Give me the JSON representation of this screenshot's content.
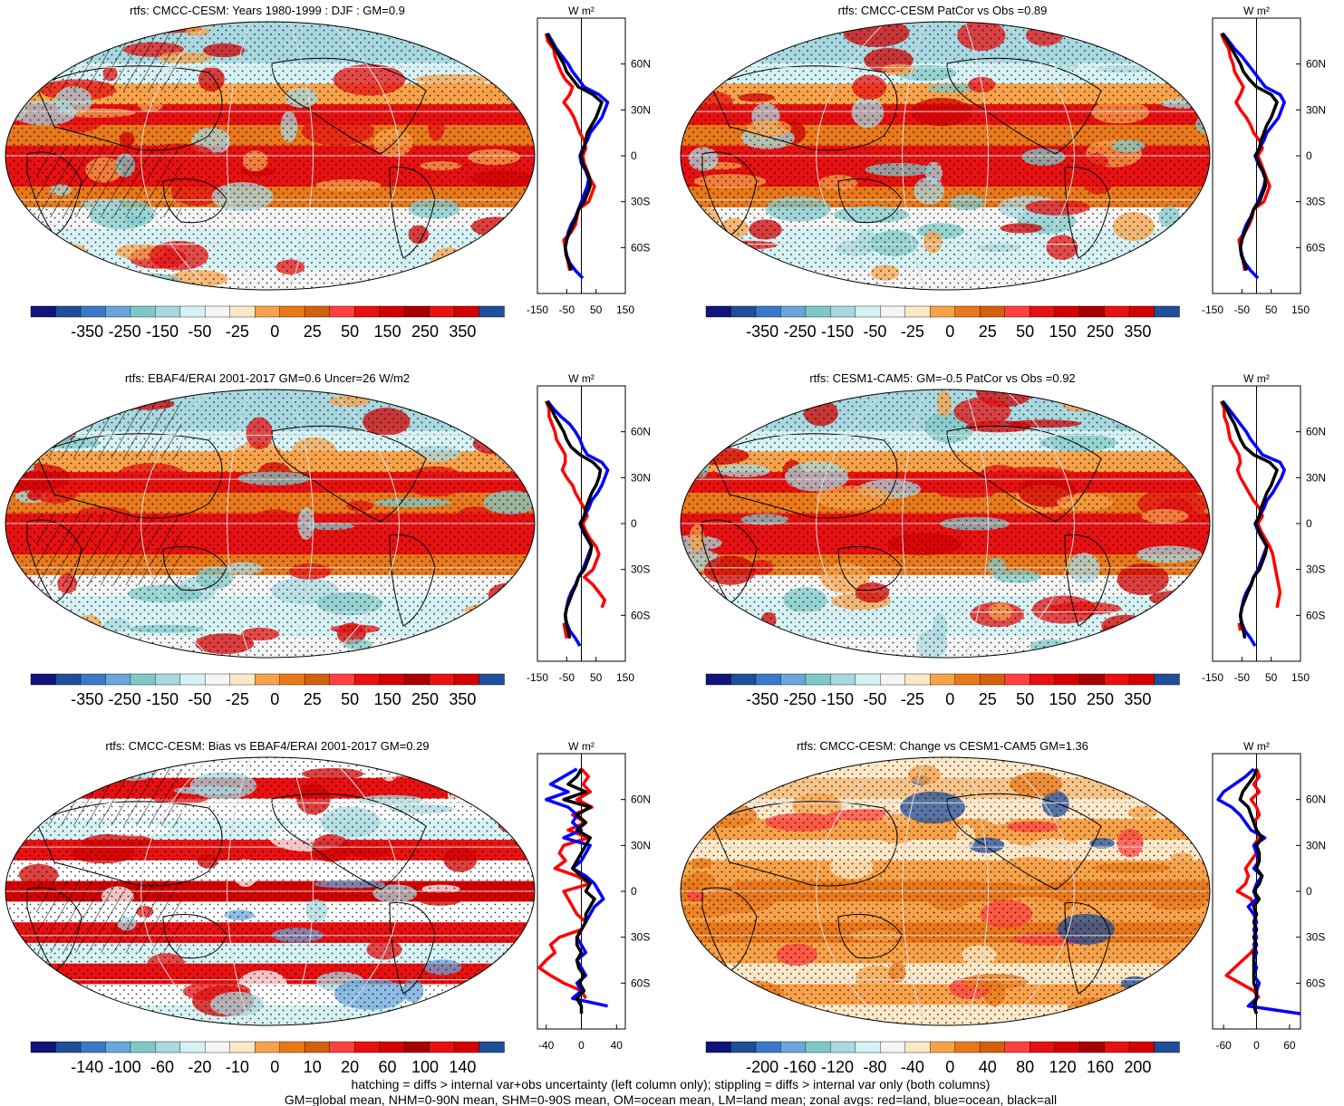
{
  "footer": {
    "line1": "hatching = diffs > internal var+obs uncertainty (left column only); stippling = diffs > internal var only (both columns)",
    "line2": "GM=global mean, NHM=0-90N mean, SHM=0-90S mean, OM=ocean mean, LM=land mean; zonal avgs: red=land, blue=ocean, black=all"
  },
  "colors": {
    "land": "#ff0000",
    "ocean": "#0000ff",
    "all": "#000000",
    "palette": [
      "#11147a",
      "#1f4e9a",
      "#3a78c8",
      "#6aa6dc",
      "#7fc8c8",
      "#a8d8e0",
      "#d6f2f4",
      "#f5f5f5",
      "#fde8c8",
      "#f7a24a",
      "#e8781a",
      "#d4600e",
      "#ff4040",
      "#e81010",
      "#d40000",
      "#a80000",
      "#e81010",
      "#d40000",
      "#1f4e9a"
    ]
  },
  "icons": {
    "map": "robinson-map-icon"
  },
  "chart_data": [
    {
      "type": "heatmap",
      "title": "rtfs: CMCC-CESM: Years 1980-1999 : DJF : GM=0.9",
      "colorbar_labels": [
        "-350",
        "-250",
        "-150",
        "-50",
        "-25",
        "0",
        "25",
        "50",
        "150",
        "250",
        "350"
      ],
      "zonal": {
        "unit": "W m²",
        "x_ticks": [
          "-150",
          "-50",
          "50",
          "150"
        ],
        "xlim": [
          -150,
          150
        ],
        "y_ticks": [
          "60N",
          "30N",
          "0",
          "30S",
          "60S"
        ],
        "lat": [
          80,
          75,
          70,
          65,
          60,
          55,
          50,
          45,
          40,
          35,
          30,
          25,
          20,
          15,
          10,
          5,
          0,
          -5,
          -10,
          -15,
          -20,
          -25,
          -30,
          -35,
          -40,
          -45,
          -50,
          -55,
          -60,
          -65,
          -70,
          -75,
          -80
        ],
        "land": [
          -120,
          -115,
          -95,
          -90,
          -80,
          -70,
          -55,
          -30,
          -40,
          -60,
          -40,
          -25,
          -15,
          -5,
          10,
          15,
          5,
          10,
          20,
          30,
          45,
          35,
          25,
          -10,
          -15,
          -20,
          -35,
          -60,
          -55,
          -50,
          -45,
          -40,
          null
        ],
        "ocean": [
          -115,
          -100,
          -85,
          -65,
          -45,
          -30,
          -10,
          10,
          60,
          90,
          80,
          70,
          50,
          30,
          20,
          5,
          -5,
          0,
          15,
          25,
          20,
          10,
          0,
          -10,
          -20,
          -35,
          -45,
          -50,
          -55,
          -50,
          -40,
          -20,
          5
        ],
        "all": [
          -118,
          -105,
          -90,
          -75,
          -60,
          -50,
          -30,
          -10,
          40,
          70,
          60,
          50,
          35,
          20,
          15,
          8,
          -2,
          5,
          18,
          28,
          30,
          20,
          10,
          -10,
          -18,
          -28,
          -40,
          -50,
          -55,
          -52,
          -42,
          -35,
          null
        ]
      }
    },
    {
      "type": "heatmap",
      "title": "rtfs: CMCC-CESM PatCor vs Obs =0.89",
      "colorbar_labels": [
        "-350",
        "-250",
        "-150",
        "-50",
        "-25",
        "0",
        "25",
        "50",
        "150",
        "250",
        "350"
      ],
      "zonal": {
        "unit": "W m²",
        "x_ticks": [
          "-150",
          "-50",
          "50",
          "150"
        ],
        "xlim": [
          -150,
          150
        ],
        "y_ticks": [
          "60N",
          "30N",
          "0",
          "30S",
          "60S"
        ],
        "lat": [
          80,
          75,
          70,
          65,
          60,
          55,
          50,
          45,
          40,
          35,
          30,
          25,
          20,
          15,
          10,
          5,
          0,
          -5,
          -10,
          -15,
          -20,
          -25,
          -30,
          -35,
          -40,
          -45,
          -50,
          -55,
          -60,
          -65,
          -70,
          -75,
          -80
        ],
        "land": [
          -120,
          -110,
          -95,
          -90,
          -80,
          -75,
          -60,
          -45,
          -55,
          -70,
          -55,
          -35,
          -20,
          -10,
          10,
          20,
          5,
          15,
          25,
          35,
          45,
          35,
          25,
          -10,
          -15,
          -25,
          -40,
          -60,
          -55,
          -50,
          -45,
          -40,
          null
        ],
        "ocean": [
          -115,
          -95,
          -75,
          -50,
          -30,
          -10,
          10,
          30,
          80,
          95,
          85,
          75,
          55,
          35,
          25,
          10,
          -5,
          5,
          20,
          30,
          25,
          15,
          5,
          -10,
          -20,
          -35,
          -45,
          -50,
          -55,
          -50,
          -40,
          -20,
          5
        ],
        "all": [
          -118,
          -100,
          -85,
          -70,
          -55,
          -45,
          -25,
          0,
          50,
          70,
          60,
          50,
          35,
          25,
          15,
          10,
          -2,
          8,
          22,
          30,
          30,
          20,
          10,
          -10,
          -18,
          -30,
          -40,
          -50,
          -55,
          -52,
          -42,
          -35,
          null
        ]
      }
    },
    {
      "type": "heatmap",
      "title": "rtfs: EBAF4/ERAI 2001-2017 GM=0.6 Uncer=26 W/m2",
      "colorbar_labels": [
        "-350",
        "-250",
        "-150",
        "-50",
        "-25",
        "0",
        "25",
        "50",
        "150",
        "250",
        "350"
      ],
      "zonal": {
        "unit": "W m²",
        "x_ticks": [
          "-150",
          "-50",
          "50",
          "150"
        ],
        "xlim": [
          -150,
          150
        ],
        "y_ticks": [
          "60N",
          "30N",
          "0",
          "30S",
          "60S"
        ],
        "lat": [
          80,
          75,
          70,
          65,
          60,
          55,
          50,
          45,
          40,
          35,
          30,
          25,
          20,
          15,
          10,
          5,
          0,
          -5,
          -10,
          -15,
          -20,
          -25,
          -30,
          -35,
          -40,
          -45,
          -50,
          -55,
          -60,
          -65,
          -70,
          -75,
          -80
        ],
        "land": [
          -120,
          -110,
          -110,
          -100,
          -90,
          -85,
          -70,
          -55,
          -55,
          -65,
          -50,
          -30,
          -20,
          -5,
          10,
          20,
          5,
          15,
          30,
          50,
          60,
          50,
          40,
          10,
          40,
          60,
          80,
          70,
          null,
          -60,
          -55,
          -50,
          null
        ],
        "ocean": [
          -115,
          -95,
          -70,
          -40,
          -20,
          -5,
          5,
          20,
          70,
          90,
          80,
          70,
          55,
          35,
          25,
          10,
          -5,
          5,
          20,
          35,
          25,
          15,
          5,
          -10,
          -20,
          -35,
          -45,
          -50,
          -55,
          -50,
          -40,
          -20,
          -5
        ],
        "all": [
          -118,
          -102,
          -90,
          -75,
          -60,
          -50,
          -35,
          -5,
          40,
          65,
          60,
          50,
          35,
          25,
          15,
          10,
          -2,
          8,
          22,
          35,
          30,
          20,
          10,
          -10,
          -18,
          -30,
          -40,
          -50,
          -55,
          -52,
          -45,
          -40,
          null
        ]
      }
    },
    {
      "type": "heatmap",
      "title": "rtfs: CESM1-CAM5: GM=-0.5 PatCor vs Obs =0.92",
      "colorbar_labels": [
        "-350",
        "-250",
        "-150",
        "-50",
        "-25",
        "0",
        "25",
        "50",
        "150",
        "250",
        "350"
      ],
      "zonal": {
        "unit": "W m²",
        "x_ticks": [
          "-150",
          "-50",
          "50",
          "150"
        ],
        "xlim": [
          -150,
          150
        ],
        "y_ticks": [
          "60N",
          "30N",
          "0",
          "30S",
          "60S"
        ],
        "lat": [
          80,
          75,
          70,
          65,
          60,
          55,
          50,
          45,
          40,
          35,
          30,
          25,
          20,
          15,
          10,
          5,
          0,
          -5,
          -10,
          -15,
          -20,
          -25,
          -30,
          -35,
          -40,
          -45,
          -50,
          -55,
          -60,
          -65,
          -70,
          -75,
          -80
        ],
        "land": [
          -120,
          -110,
          -110,
          -100,
          -95,
          -90,
          -75,
          -60,
          -55,
          -65,
          -55,
          -40,
          -25,
          -10,
          10,
          20,
          5,
          15,
          30,
          45,
          55,
          60,
          65,
          70,
          75,
          80,
          75,
          70,
          null,
          -60,
          -55,
          null,
          null
        ],
        "ocean": [
          -115,
          -95,
          -75,
          -55,
          -35,
          -20,
          0,
          20,
          80,
          95,
          85,
          70,
          55,
          35,
          25,
          10,
          -5,
          5,
          20,
          35,
          25,
          15,
          5,
          -10,
          -20,
          -35,
          -45,
          -50,
          -55,
          -50,
          -40,
          -20,
          -5
        ],
        "all": [
          -118,
          -102,
          -90,
          -75,
          -65,
          -55,
          -40,
          -10,
          45,
          70,
          60,
          50,
          35,
          25,
          15,
          10,
          -2,
          8,
          22,
          35,
          30,
          20,
          10,
          -10,
          -18,
          -30,
          -40,
          -50,
          -55,
          -52,
          -45,
          -40,
          null
        ]
      }
    },
    {
      "type": "heatmap",
      "title": "rtfs: CMCC-CESM: Bias vs EBAF4/ERAI 2001-2017 GM=0.29",
      "colorbar_labels": [
        "-140",
        "-100",
        "-60",
        "-20",
        "-10",
        "0",
        "10",
        "20",
        "60",
        "100",
        "140"
      ],
      "zonal": {
        "unit": "W m²",
        "x_ticks": [
          "-40",
          "0",
          "40"
        ],
        "xlim": [
          -50,
          50
        ],
        "y_ticks": [
          "60N",
          "30N",
          "0",
          "30S",
          "60S"
        ],
        "lat": [
          80,
          75,
          70,
          65,
          60,
          55,
          50,
          45,
          40,
          35,
          30,
          25,
          20,
          15,
          10,
          5,
          0,
          -5,
          -10,
          -15,
          -20,
          -25,
          -30,
          -35,
          -40,
          -45,
          -50,
          -55,
          -60,
          -65,
          -70,
          -75,
          -80
        ],
        "land": [
          0,
          8,
          2,
          10,
          -5,
          12,
          -10,
          5,
          -15,
          8,
          -20,
          -25,
          -18,
          -30,
          -5,
          10,
          -20,
          -15,
          -10,
          -5,
          5,
          0,
          -25,
          -35,
          -30,
          -40,
          -48,
          -35,
          -20,
          0,
          5,
          null,
          null
        ],
        "ocean": [
          -5,
          -20,
          -35,
          -15,
          -40,
          -15,
          -5,
          -10,
          0,
          -20,
          10,
          5,
          0,
          -10,
          5,
          15,
          20,
          25,
          15,
          10,
          5,
          0,
          -5,
          0,
          5,
          -5,
          0,
          5,
          -5,
          0,
          -10,
          30,
          null
        ],
        "all": [
          0,
          -5,
          -15,
          5,
          -20,
          10,
          -5,
          5,
          -5,
          10,
          5,
          0,
          -5,
          -10,
          0,
          10,
          5,
          15,
          10,
          5,
          5,
          0,
          -5,
          -5,
          0,
          -5,
          -3,
          3,
          -2,
          3,
          -5,
          0,
          0
        ]
      }
    },
    {
      "type": "heatmap",
      "title": "rtfs: CMCC-CESM: Change vs CESM1-CAM5 GM=1.36",
      "colorbar_labels": [
        "-200",
        "-160",
        "-120",
        "-80",
        "-40",
        "0",
        "40",
        "80",
        "120",
        "160",
        "200"
      ],
      "zonal": {
        "unit": "W m²",
        "x_ticks": [
          "-60",
          "0",
          "60"
        ],
        "xlim": [
          -80,
          80
        ],
        "y_ticks": [
          "60N",
          "30N",
          "0",
          "30S",
          "60S"
        ],
        "lat": [
          80,
          75,
          70,
          65,
          60,
          55,
          50,
          45,
          40,
          35,
          30,
          25,
          20,
          15,
          10,
          5,
          0,
          -5,
          -10,
          -15,
          -20,
          -25,
          -30,
          -35,
          -40,
          -45,
          -50,
          -55,
          -60,
          -65,
          -70,
          -75,
          -80
        ],
        "land": [
          0,
          5,
          -5,
          5,
          -10,
          0,
          5,
          -5,
          0,
          5,
          -5,
          0,
          -10,
          -20,
          -15,
          -20,
          -35,
          -10,
          -5,
          0,
          -5,
          0,
          -5,
          0,
          -10,
          -25,
          -40,
          -55,
          -30,
          -5,
          5,
          null,
          null
        ],
        "ocean": [
          -5,
          -20,
          -40,
          -60,
          -70,
          -45,
          -30,
          -20,
          -10,
          15,
          -5,
          0,
          5,
          -5,
          10,
          0,
          -5,
          0,
          -15,
          -5,
          0,
          -5,
          0,
          -5,
          0,
          -5,
          0,
          -5,
          5,
          0,
          0,
          -15,
          80
        ],
        "all": [
          0,
          -5,
          -15,
          -25,
          -30,
          -15,
          -10,
          -5,
          0,
          10,
          0,
          5,
          5,
          0,
          10,
          5,
          -5,
          5,
          -5,
          0,
          -5,
          0,
          -5,
          0,
          -5,
          -5,
          -5,
          -5,
          -5,
          0,
          0,
          -5,
          0
        ]
      }
    }
  ]
}
